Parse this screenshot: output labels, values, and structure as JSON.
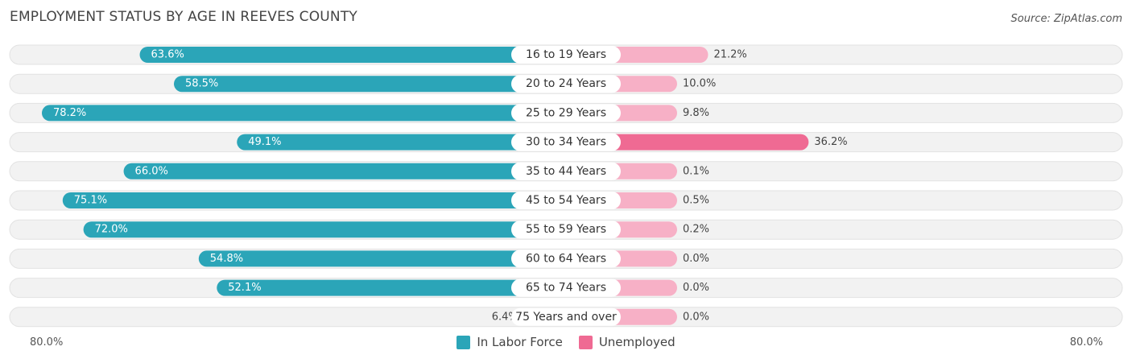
{
  "title": "EMPLOYMENT STATUS BY AGE IN REEVES COUNTY",
  "source": "Source: ZipAtlas.com",
  "colors": {
    "labor_force_strong": "#2ba5b8",
    "labor_force_light": "#85cfda",
    "unemployed_strong": "#ef6a93",
    "unemployed_light": "#f7b0c6",
    "track": "#f2f2f2"
  },
  "chart_data": {
    "type": "bar",
    "orientation": "horizontal-diverging",
    "title": "EMPLOYMENT STATUS BY AGE IN REEVES COUNTY",
    "categories": [
      "16 to 19 Years",
      "20 to 24 Years",
      "25 to 29 Years",
      "30 to 34 Years",
      "35 to 44 Years",
      "45 to 54 Years",
      "55 to 59 Years",
      "60 to 64 Years",
      "65 to 74 Years",
      "75 Years and over"
    ],
    "series": [
      {
        "name": "In Labor Force",
        "side": "left",
        "values": [
          63.6,
          58.5,
          78.2,
          49.1,
          66.0,
          75.1,
          72.0,
          54.8,
          52.1,
          6.4
        ],
        "labels": [
          "63.6%",
          "58.5%",
          "78.2%",
          "49.1%",
          "66.0%",
          "75.1%",
          "72.0%",
          "54.8%",
          "52.1%",
          "6.4%"
        ]
      },
      {
        "name": "Unemployed",
        "side": "right",
        "values": [
          21.2,
          10.0,
          9.8,
          36.2,
          0.1,
          0.5,
          0.2,
          0.0,
          0.0,
          0.0
        ],
        "labels": [
          "21.2%",
          "10.0%",
          "9.8%",
          "36.2%",
          "0.1%",
          "0.5%",
          "0.2%",
          "0.0%",
          "0.0%",
          "0.0%"
        ]
      }
    ],
    "axis_max": 80.0,
    "axis_left_label": "80.0%",
    "axis_right_label": "80.0%",
    "legend": [
      "In Labor Force",
      "Unemployed"
    ],
    "legend_position": "bottom-center"
  }
}
